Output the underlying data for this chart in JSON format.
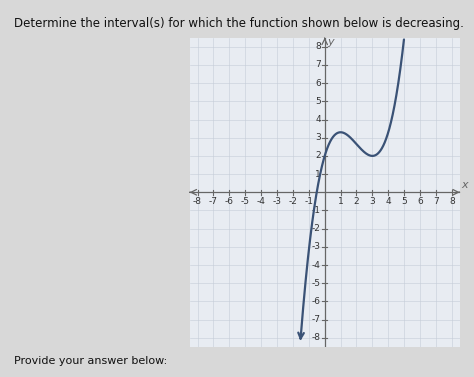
{
  "title": "Determine the interval(s) for which the function shown below is decreasing.",
  "footer": "Provide your answer below:",
  "xlabel": "x",
  "ylabel": "y",
  "xlim": [
    -8.5,
    8.5
  ],
  "ylim": [
    -8.5,
    8.5
  ],
  "xticks": [
    -8,
    -7,
    -6,
    -5,
    -4,
    -3,
    -2,
    -1,
    1,
    2,
    3,
    4,
    5,
    6,
    7,
    8
  ],
  "yticks": [
    -8,
    -7,
    -6,
    -5,
    -4,
    -3,
    -2,
    -1,
    1,
    2,
    3,
    4,
    5,
    6,
    7,
    8
  ],
  "curve_color": "#3a5276",
  "curve_linewidth": 1.6,
  "grid_color": "#c5ccd8",
  "grid_linewidth": 0.4,
  "axis_color": "#666666",
  "outer_bg": "#d8d8d8",
  "plot_bg": "#e8ecf2",
  "title_fontsize": 8.5,
  "footer_fontsize": 8,
  "tick_fontsize": 6.5,
  "axis_label_fontsize": 8,
  "curve_a": 0.975,
  "curve_b": 2.0,
  "x_start": -0.18,
  "x_end": 5.15
}
